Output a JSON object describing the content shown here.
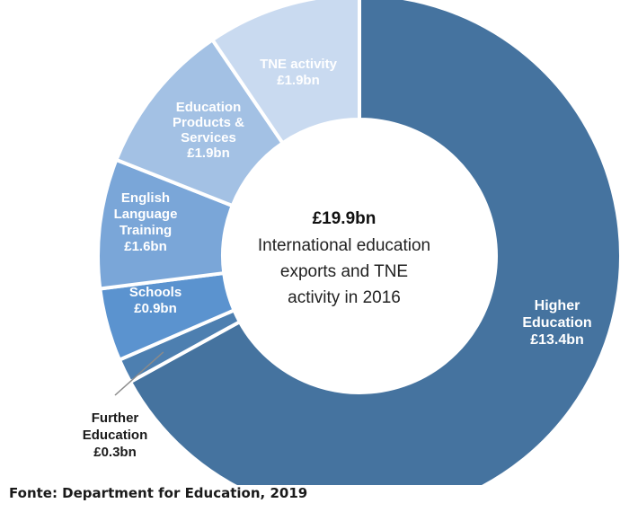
{
  "chart_data": {
    "type": "pie",
    "variant": "donut",
    "categories": [
      "Higher Education",
      "Further Education",
      "Schools",
      "English Language Training",
      "Education Products & Services",
      "TNE activity"
    ],
    "values": [
      13.4,
      0.3,
      0.9,
      1.6,
      1.9,
      1.9
    ],
    "slice_labels": [
      {
        "lines": [
          "Higher",
          "Education",
          "£13.4bn"
        ]
      },
      {
        "lines": [
          "Further",
          "Education",
          "£0.3bn"
        ]
      },
      {
        "lines": [
          "Schools",
          "£0.9bn"
        ]
      },
      {
        "lines": [
          "English",
          "Language",
          "Training",
          "£1.6bn"
        ]
      },
      {
        "lines": [
          "Education",
          "Products &",
          "Services",
          "£1.9bn"
        ]
      },
      {
        "lines": [
          "TNE activity",
          "£1.9bn"
        ]
      }
    ],
    "colors": [
      "#45739f",
      "#4d7fb0",
      "#5b93cf",
      "#7aa6d8",
      "#a3c1e4",
      "#c9daf0"
    ],
    "center": {
      "total": "£19.9bn",
      "description": [
        "International education",
        "exports and TNE",
        "activity in 2016"
      ]
    },
    "legend": "none"
  },
  "source": "Fonte: Department for Education, 2019"
}
